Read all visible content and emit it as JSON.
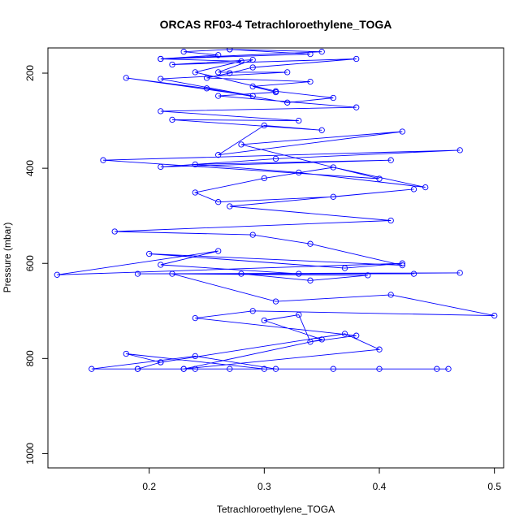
{
  "chart_data": {
    "type": "line",
    "title": "ORCAS RF03-4 Tetrachloroethylene_TOGA",
    "xlabel": "Tetrachloroethylene_TOGA",
    "ylabel": "Pressure (mbar)",
    "xlim": [
      0.112,
      0.508
    ],
    "ylim": [
      1030,
      147
    ],
    "y_reversed": true,
    "x_ticks": [
      "0.2",
      "0.3",
      "0.4",
      "0.5"
    ],
    "y_ticks": [
      "200",
      "400",
      "600",
      "800",
      "1000"
    ],
    "x_tick_values": [
      0.2,
      0.3,
      0.4,
      0.5
    ],
    "y_tick_values": [
      200,
      400,
      600,
      800,
      1000
    ],
    "grid": false,
    "legend": "none",
    "series_color": "#0000ff",
    "series": [
      {
        "x": [
          0.21,
          0.19,
          0.45,
          0.31,
          0.24,
          0.15,
          0.46,
          0.23,
          0.24,
          0.27,
          0.36,
          0.4,
          0.19,
          0.3,
          0.18,
          0.21,
          0.37,
          0.4,
          0.23,
          0.35,
          0.3,
          0.33,
          0.34,
          0.38,
          0.24,
          0.29,
          0.5,
          0.41,
          0.31,
          0.22,
          0.39,
          0.34,
          0.28,
          0.43,
          0.19,
          0.47,
          0.33,
          0.21,
          0.26,
          0.12,
          0.42,
          0.37,
          0.2,
          0.42,
          0.34,
          0.29,
          0.17,
          0.41,
          0.27,
          0.43,
          0.36,
          0.26,
          0.24,
          0.3,
          0.36,
          0.44,
          0.33,
          0.24,
          0.41,
          0.21,
          0.31,
          0.47,
          0.16,
          0.4,
          0.28,
          0.42,
          0.26,
          0.3,
          0.35,
          0.22,
          0.33,
          0.21,
          0.38,
          0.26,
          0.31,
          0.29,
          0.34,
          0.25,
          0.27,
          0.29,
          0.38,
          0.22,
          0.29,
          0.26,
          0.32,
          0.21,
          0.29,
          0.18,
          0.25,
          0.32,
          0.36,
          0.31,
          0.24,
          0.28,
          0.21,
          0.34,
          0.27,
          0.23,
          0.26,
          0.21,
          0.35,
          0.27
        ],
        "y": [
          808,
          822,
          822,
          822,
          795,
          822,
          822,
          822,
          822,
          822,
          822,
          822,
          822,
          822,
          790,
          808,
          748,
          781,
          822,
          760,
          720,
          708,
          765,
          752,
          715,
          700,
          710,
          666,
          680,
          622,
          625,
          636,
          622,
          622,
          622,
          620,
          622,
          603,
          574,
          624,
          600,
          610,
          580,
          604,
          559,
          540,
          533,
          510,
          480,
          444,
          460,
          471,
          451,
          421,
          398,
          440,
          409,
          392,
          383,
          397,
          380,
          362,
          383,
          422,
          350,
          323,
          372,
          310,
          320,
          298,
          300,
          280,
          272,
          248,
          240,
          228,
          218,
          210,
          200,
          188,
          170,
          182,
          172,
          198,
          198,
          212,
          248,
          210,
          232,
          262,
          252,
          238,
          198,
          175,
          170,
          160,
          150,
          155,
          162,
          170,
          155,
          150
        ]
      }
    ]
  }
}
